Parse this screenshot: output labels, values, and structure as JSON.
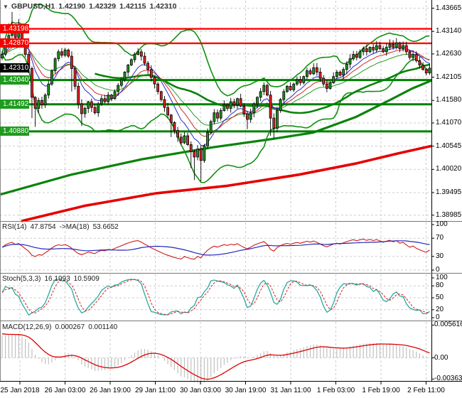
{
  "chart_data": {
    "type": "candlestick",
    "title": {
      "symbol_period": "GBPUSD,H1",
      "open": "1.42190",
      "high": "1.42329",
      "low": "1.42115",
      "close": "1.42310"
    },
    "x_labels": [
      "25 Jan 2018",
      "26 Jan 03:00",
      "26 Jan 19:00",
      "29 Jan 11:00",
      "30 Jan 03:00",
      "30 Jan 19:00",
      "31 Jan 11:00",
      "1 Feb 03:00",
      "1 Feb 19:00",
      "2 Feb 11:00"
    ],
    "price_axis": {
      "y_ticks": [
        {
          "label": "1.43665",
          "price": 1.43665
        },
        {
          "label": "1.43140",
          "price": 1.4314
        },
        {
          "label": "1.42630",
          "price": 1.4263
        },
        {
          "label": "1.42105",
          "price": 1.42105
        },
        {
          "label": "1.41580",
          "price": 1.4158
        },
        {
          "label": "1.41070",
          "price": 1.4107
        },
        {
          "label": "1.40545",
          "price": 1.40545
        },
        {
          "label": "1.40020",
          "price": 1.4002
        },
        {
          "label": "1.39495",
          "price": 1.39495
        },
        {
          "label": "1.38985",
          "price": 1.38985
        }
      ]
    },
    "levels": [
      {
        "label": "1.43198",
        "price": 1.43198,
        "kind": "resistance"
      },
      {
        "label": "1.42870",
        "price": 1.4287,
        "kind": "resistance"
      },
      {
        "label": "1.42040",
        "price": 1.4204,
        "kind": "support"
      },
      {
        "label": "1.41492",
        "price": 1.41492,
        "kind": "support"
      },
      {
        "label": "1.40880",
        "price": 1.4088,
        "kind": "support"
      }
    ],
    "current_price": {
      "label": "1.42310",
      "price": 1.4231
    },
    "candles": {
      "closes": [
        1.4262,
        1.4288,
        1.4305,
        1.4318,
        1.43,
        1.431,
        1.4288,
        1.4262,
        1.423,
        1.4165,
        1.414,
        1.4158,
        1.4148,
        1.417,
        1.4195,
        1.4225,
        1.4252,
        1.4268,
        1.426,
        1.4272,
        1.4258,
        1.423,
        1.419,
        1.415,
        1.4128,
        1.414,
        1.4155,
        1.4142,
        1.413,
        1.415,
        1.4162,
        1.4155,
        1.417,
        1.4162,
        1.4178,
        1.4192,
        1.4205,
        1.4222,
        1.4238,
        1.425,
        1.4262,
        1.4268,
        1.4258,
        1.4242,
        1.4228,
        1.421,
        1.4195,
        1.4178,
        1.416,
        1.4142,
        1.4125,
        1.4108,
        1.409,
        1.4075,
        1.4062,
        1.4078,
        1.4058,
        1.4042,
        1.403,
        1.4048,
        1.4022,
        1.4055,
        1.4085,
        1.411,
        1.413,
        1.4118,
        1.4135,
        1.4148,
        1.414,
        1.4155,
        1.4148,
        1.4162,
        1.4145,
        1.4128,
        1.4115,
        1.413,
        1.415,
        1.4165,
        1.4178,
        1.4192,
        1.417,
        1.4118,
        1.4095,
        1.4135,
        1.416,
        1.4178,
        1.419,
        1.4182,
        1.4195,
        1.4205,
        1.4198,
        1.4212,
        1.4225,
        1.4218,
        1.4232,
        1.4222,
        1.4208,
        1.4195,
        1.4185,
        1.4198,
        1.4212,
        1.4222,
        1.4215,
        1.4228,
        1.424,
        1.4252,
        1.4262,
        1.4255,
        1.4268,
        1.4275,
        1.4268,
        1.4278,
        1.4272,
        1.4282,
        1.4275,
        1.4268,
        1.4278,
        1.4285,
        1.4278,
        1.4288,
        1.4275,
        1.4282,
        1.4268,
        1.4255,
        1.4262,
        1.4248,
        1.4238,
        1.4228,
        1.422,
        1.4231
      ],
      "wick_overrides": {
        "2": {
          "h": 1.4332
        },
        "3": {
          "h": 1.4358
        },
        "5": {
          "h": 1.4342
        },
        "9": {
          "l": 1.4118
        },
        "10": {
          "l": 1.4098
        },
        "21": {
          "l": 1.4178
        },
        "24": {
          "l": 1.41
        },
        "51": {
          "l": 1.4075
        },
        "57": {
          "l": 1.4005
        },
        "58": {
          "l": 1.3978
        },
        "60": {
          "l": 1.3975
        },
        "74": {
          "l": 1.4093
        },
        "81": {
          "l": 1.4078
        },
        "82": {
          "l": 1.4072
        },
        "113": {
          "h": 1.4292
        },
        "117": {
          "h": 1.4296
        },
        "119": {
          "h": 1.4299
        }
      }
    },
    "overlays": {
      "bb_period": 20,
      "bb_dev": 2,
      "ema_fast_periods": [
        8,
        13,
        21
      ],
      "mid_ma_window": 45,
      "slow_ma_green_points": [
        [
          0,
          1.3945
        ],
        [
          100,
          1.399
        ],
        [
          200,
          1.4025
        ],
        [
          300,
          1.4052
        ],
        [
          380,
          1.407
        ],
        [
          440,
          1.4085
        ],
        [
          500,
          1.412
        ],
        [
          550,
          1.416
        ],
        [
          580,
          1.4185
        ],
        [
          607,
          1.4203
        ]
      ],
      "slow_ma_red_points": [
        [
          30,
          1.3885
        ],
        [
          120,
          1.392
        ],
        [
          220,
          1.3948
        ],
        [
          320,
          1.3965
        ],
        [
          420,
          1.399
        ],
        [
          500,
          1.4015
        ],
        [
          560,
          1.4038
        ],
        [
          607,
          1.4055
        ]
      ]
    },
    "rsi": {
      "label_name": "RSI(14)",
      "value": "47.8754",
      "ma_label": "->MA(18)",
      "ma_value": "53.6652",
      "period": 14,
      "ma_period": 18,
      "y_ticks": [
        100,
        70,
        30,
        0
      ],
      "grid_levels": [
        70,
        30,
        0
      ]
    },
    "stoch": {
      "label_name": "Stoch(5,3,3)",
      "k_value": "16.1993",
      "d_value": "10.5909",
      "params": [
        5,
        3,
        3
      ],
      "y_ticks": [
        100,
        80,
        50,
        20,
        0
      ],
      "grid_levels": [
        80,
        50,
        20
      ]
    },
    "macd": {
      "label_name": "MACD(12,26,9)",
      "value": "0.000267",
      "signal_value": "0.001140",
      "params": [
        12,
        26,
        9
      ],
      "y_ticks": [
        {
          "label": "0.005616",
          "value": 0.005616
        },
        {
          "label": "0.00",
          "value": 0
        },
        {
          "label": "-0.003635",
          "value": -0.003635
        }
      ]
    },
    "colors": {
      "bull": "#1c941c",
      "bear": "#e32222",
      "wick": "#000000",
      "grid": "#cdcdcd",
      "bb": "#109010",
      "ma_fast_blue": "#2a2ad2",
      "ma_fast_red": "#d22a2a",
      "ma_fast_green": "#2a9a2a",
      "ma_mid_green": "#0a830a",
      "ma_slow_green": "#0a830a",
      "ma_slow_red": "#e60000",
      "level_red": "#ff0000",
      "level_green": "#008000",
      "badge_red": "#f40000",
      "badge_green": "#1e9b1e",
      "badge_black": "#000000",
      "rsi_line": "#cc1c1c",
      "rsi_ma": "#2228bb",
      "stoch_k": "#2aa8a0",
      "stoch_d": "#d02020",
      "macd_hist": "#c0c0c0",
      "macd_signal": "#dd0000",
      "axis_text": "#000000"
    }
  }
}
